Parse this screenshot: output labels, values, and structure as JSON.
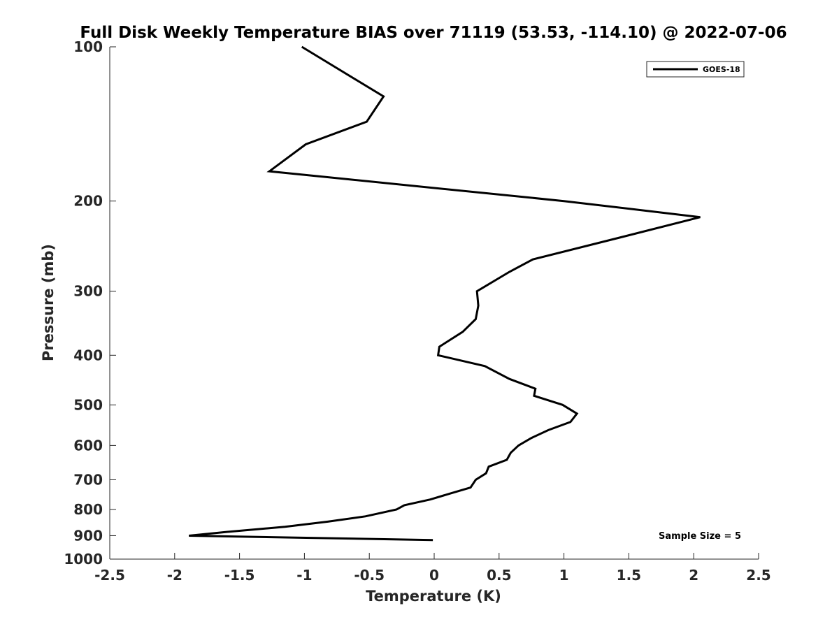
{
  "chart_data": {
    "type": "line",
    "title": "Full Disk Weekly Temperature BIAS over 71119 (53.53, -114.10) @ 2022-07-06",
    "xlabel": "Temperature (K)",
    "ylabel": "Pressure (mb)",
    "xlim": [
      -2.5,
      2.5
    ],
    "ylim": [
      100,
      1000
    ],
    "y_scale": "log",
    "y_inverted": true,
    "grid": false,
    "legend_position": "top-right",
    "annotation": "Sample Size = 5",
    "x_ticks": [
      -2.5,
      -2,
      -1.5,
      -1,
      -0.5,
      0,
      0.5,
      1,
      1.5,
      2,
      2.5
    ],
    "x_tick_labels": [
      "-2.5",
      "-2",
      "-1.5",
      "-1",
      "-0.5",
      "0",
      "0.5",
      "1",
      "1.5",
      "2",
      "2.5"
    ],
    "y_ticks": [
      100,
      200,
      300,
      400,
      500,
      600,
      700,
      800,
      900,
      1000
    ],
    "y_tick_labels": [
      "100",
      "200",
      "300",
      "400",
      "500",
      "600",
      "700",
      "800",
      "900",
      "1000"
    ],
    "series": [
      {
        "name": "GOES-18",
        "color": "#000000",
        "points": [
          {
            "x": -1.02,
            "p": 100
          },
          {
            "x": -0.39,
            "p": 125
          },
          {
            "x": -0.52,
            "p": 140
          },
          {
            "x": -0.99,
            "p": 155
          },
          {
            "x": -1.27,
            "p": 175
          },
          {
            "x": 1.0,
            "p": 200
          },
          {
            "x": 2.05,
            "p": 215
          },
          {
            "x": 1.45,
            "p": 235
          },
          {
            "x": 0.76,
            "p": 260
          },
          {
            "x": 0.58,
            "p": 275
          },
          {
            "x": 0.33,
            "p": 300
          },
          {
            "x": 0.34,
            "p": 320
          },
          {
            "x": 0.32,
            "p": 340
          },
          {
            "x": 0.22,
            "p": 360
          },
          {
            "x": 0.04,
            "p": 385
          },
          {
            "x": 0.03,
            "p": 400
          },
          {
            "x": 0.39,
            "p": 420
          },
          {
            "x": 0.58,
            "p": 445
          },
          {
            "x": 0.78,
            "p": 465
          },
          {
            "x": 0.77,
            "p": 480
          },
          {
            "x": 0.99,
            "p": 500
          },
          {
            "x": 1.1,
            "p": 520
          },
          {
            "x": 1.05,
            "p": 540
          },
          {
            "x": 0.88,
            "p": 560
          },
          {
            "x": 0.75,
            "p": 580
          },
          {
            "x": 0.65,
            "p": 600
          },
          {
            "x": 0.59,
            "p": 620
          },
          {
            "x": 0.56,
            "p": 640
          },
          {
            "x": 0.42,
            "p": 660
          },
          {
            "x": 0.4,
            "p": 680
          },
          {
            "x": 0.32,
            "p": 700
          },
          {
            "x": 0.28,
            "p": 725
          },
          {
            "x": 0.12,
            "p": 745
          },
          {
            "x": -0.03,
            "p": 765
          },
          {
            "x": -0.23,
            "p": 785
          },
          {
            "x": -0.29,
            "p": 800
          },
          {
            "x": -0.53,
            "p": 825
          },
          {
            "x": -0.82,
            "p": 845
          },
          {
            "x": -1.15,
            "p": 865
          },
          {
            "x": -1.6,
            "p": 885
          },
          {
            "x": -1.89,
            "p": 900
          },
          {
            "x": -0.01,
            "p": 918
          }
        ]
      }
    ]
  }
}
